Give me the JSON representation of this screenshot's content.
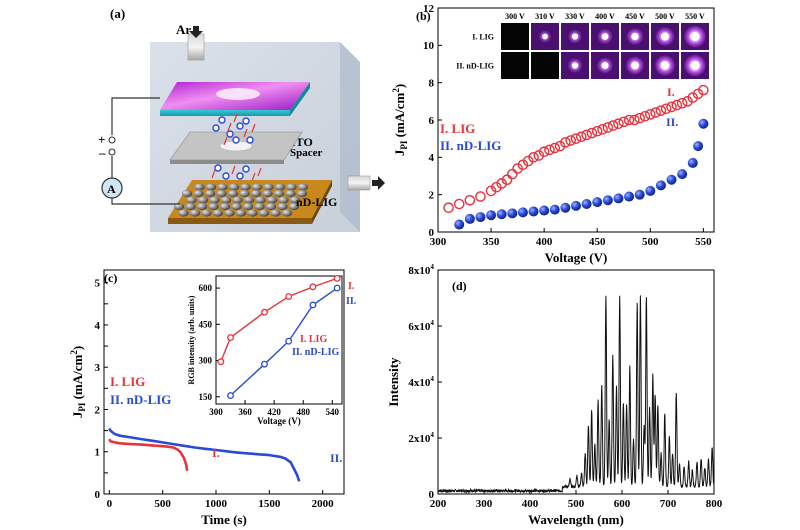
{
  "panels": {
    "a": {
      "label": "(a)",
      "gas_in": "Ar",
      "layer_top": "ITO",
      "layer_mid": "Spacer",
      "layer_bottom": "nD-LIG",
      "ammeter": "A",
      "plus": "+",
      "minus": "–"
    }
  },
  "chart_data": [
    {
      "id": "b",
      "panel_label": "(b)",
      "type": "scatter",
      "xlabel": "Voltage (V)",
      "ylabel": "J",
      "ylabel_sub": "PI",
      "ylabel_unit": " (mA/cm",
      "ylabel_sup": "2",
      "ylabel_close": ")",
      "xlim": [
        300,
        560
      ],
      "ylim": [
        0,
        12
      ],
      "xticks": [
        300,
        350,
        400,
        450,
        500,
        550
      ],
      "yticks": [
        0,
        2,
        4,
        6,
        8,
        10,
        12
      ],
      "legend": [
        "I. LIG",
        "II. nD-LIG"
      ],
      "series_end_labels": [
        "I.",
        "II."
      ],
      "series": [
        {
          "name": "I. LIG",
          "color": "#e8323c",
          "marker": "open-circle",
          "x": [
            310,
            320,
            330,
            340,
            350,
            355,
            360,
            365,
            370,
            375,
            380,
            385,
            390,
            395,
            400,
            405,
            410,
            415,
            420,
            425,
            430,
            435,
            440,
            445,
            450,
            455,
            460,
            465,
            470,
            475,
            480,
            485,
            490,
            495,
            500,
            505,
            510,
            515,
            520,
            525,
            530,
            535,
            540,
            545,
            550
          ],
          "y": [
            1.3,
            1.5,
            1.7,
            1.9,
            2.2,
            2.4,
            2.6,
            2.8,
            3.1,
            3.4,
            3.6,
            3.8,
            4.0,
            4.1,
            4.3,
            4.4,
            4.5,
            4.6,
            4.8,
            4.9,
            5.0,
            5.1,
            5.2,
            5.3,
            5.4,
            5.5,
            5.6,
            5.7,
            5.8,
            5.9,
            6.0,
            6.0,
            6.1,
            6.2,
            6.3,
            6.4,
            6.5,
            6.6,
            6.7,
            6.8,
            6.9,
            7.0,
            7.2,
            7.4,
            7.6
          ]
        },
        {
          "name": "II. nD-LIG",
          "color": "#2a4ad6",
          "marker": "filled-sphere",
          "x": [
            320,
            330,
            340,
            350,
            360,
            370,
            380,
            390,
            400,
            410,
            420,
            430,
            440,
            450,
            460,
            470,
            480,
            490,
            500,
            510,
            520,
            530,
            540,
            545,
            550
          ],
          "y": [
            0.4,
            0.7,
            0.8,
            0.9,
            0.95,
            1.0,
            1.05,
            1.1,
            1.15,
            1.2,
            1.3,
            1.4,
            1.5,
            1.6,
            1.7,
            1.8,
            1.9,
            2.0,
            2.2,
            2.5,
            2.8,
            3.1,
            3.7,
            4.6,
            5.8
          ]
        }
      ],
      "inset": {
        "row_labels": [
          "I. LIG",
          "II. nD-LIG"
        ],
        "columns": [
          "300 V",
          "310 V",
          "330 V",
          "400 V",
          "450 V",
          "500 V",
          "550 V"
        ],
        "lig_glow": [
          0,
          0.35,
          0.45,
          0.55,
          0.65,
          0.8,
          1.0
        ],
        "ndlig_glow": [
          0,
          0,
          0.5,
          0.6,
          0.75,
          0.9,
          1.0
        ]
      }
    },
    {
      "id": "c",
      "panel_label": "(c)",
      "type": "line",
      "xlabel": "Time (s)",
      "ylabel": "J",
      "ylabel_sub": "PI",
      "ylabel_unit": " (mA/cm",
      "ylabel_sup": "2",
      "ylabel_close": ")",
      "xlim": [
        -50,
        2200
      ],
      "ylim": [
        0,
        5.3
      ],
      "xticks": [
        0,
        500,
        1000,
        1500,
        2000
      ],
      "yticks": [
        0,
        0.5,
        1,
        1.5,
        2,
        2.5,
        3,
        3.5,
        4,
        4.5,
        5
      ],
      "ytick_labels": [
        "0",
        "",
        "1",
        "",
        "2",
        "",
        "3",
        "",
        "4",
        "",
        "5"
      ],
      "legend": [
        "I. LIG",
        "II. nD-LIG"
      ],
      "series_end_labels": [
        "I.",
        "II."
      ],
      "series": [
        {
          "name": "I. LIG",
          "color": "#e8323c",
          "x": [
            0,
            10,
            50,
            100,
            200,
            300,
            400,
            500,
            550,
            600,
            640,
            670,
            700,
            720,
            730
          ],
          "y": [
            1.3,
            1.25,
            1.22,
            1.2,
            1.18,
            1.17,
            1.15,
            1.13,
            1.12,
            1.1,
            1.05,
            0.98,
            0.85,
            0.7,
            0.55
          ]
        },
        {
          "name": "II. nD-LIG",
          "color": "#2a4ad6",
          "x": [
            0,
            10,
            50,
            100,
            200,
            300,
            400,
            500,
            600,
            700,
            800,
            900,
            1000,
            1100,
            1200,
            1300,
            1400,
            1500,
            1550,
            1600,
            1650,
            1700,
            1730,
            1760,
            1780
          ],
          "y": [
            1.55,
            1.5,
            1.42,
            1.38,
            1.34,
            1.3,
            1.26,
            1.22,
            1.18,
            1.14,
            1.1,
            1.07,
            1.04,
            1.01,
            0.98,
            0.96,
            0.94,
            0.92,
            0.9,
            0.88,
            0.84,
            0.75,
            0.6,
            0.45,
            0.3
          ]
        }
      ],
      "inset": {
        "type": "line",
        "xlabel": "Voltage (V)",
        "ylabel": "RGB intensity (arb. units)",
        "xlim": [
          300,
          560
        ],
        "ylim": [
          120,
          650
        ],
        "xticks": [
          300,
          360,
          420,
          480,
          540
        ],
        "yticks": [
          150,
          300,
          450,
          600
        ],
        "legend": [
          "I. LIG",
          "II. nD-LIG"
        ],
        "series_end_labels": [
          "I.",
          "II."
        ],
        "series": [
          {
            "name": "I. LIG",
            "color": "#e8323c",
            "x": [
              310,
              330,
              400,
              450,
              500,
              550
            ],
            "y": [
              295,
              395,
              500,
              565,
              605,
              640
            ]
          },
          {
            "name": "II. nD-LIG",
            "color": "#2a4ad6",
            "x": [
              330,
              400,
              450,
              500,
              550
            ],
            "y": [
              155,
              285,
              380,
              530,
              600
            ]
          }
        ]
      }
    },
    {
      "id": "d",
      "panel_label": "(d)",
      "type": "line",
      "xlabel": "Wavelength (nm)",
      "ylabel": "Intensity",
      "xlim": [
        200,
        800
      ],
      "ylim": [
        0,
        80000
      ],
      "xticks": [
        200,
        300,
        400,
        500,
        600,
        700,
        800
      ],
      "yticks": [
        0,
        20000,
        40000,
        60000,
        80000
      ],
      "ytick_labels": [
        "0",
        "2x10",
        "4x10",
        "6x10",
        "8x10"
      ],
      "ytick_sup": "4",
      "color": "#111111",
      "peaks": [
        {
          "x": 487,
          "h": 2500
        },
        {
          "x": 502,
          "h": 4000
        },
        {
          "x": 512,
          "h": 5000
        },
        {
          "x": 520,
          "h": 12000
        },
        {
          "x": 527,
          "h": 22000
        },
        {
          "x": 534,
          "h": 27000
        },
        {
          "x": 541,
          "h": 15000
        },
        {
          "x": 548,
          "h": 31000
        },
        {
          "x": 556,
          "h": 36000
        },
        {
          "x": 565,
          "h": 68000
        },
        {
          "x": 572,
          "h": 24000
        },
        {
          "x": 580,
          "h": 47000
        },
        {
          "x": 588,
          "h": 36000
        },
        {
          "x": 595,
          "h": 68000
        },
        {
          "x": 603,
          "h": 30000
        },
        {
          "x": 610,
          "h": 29000
        },
        {
          "x": 617,
          "h": 43000
        },
        {
          "x": 625,
          "h": 17000
        },
        {
          "x": 633,
          "h": 66000
        },
        {
          "x": 640,
          "h": 68000
        },
        {
          "x": 648,
          "h": 22000
        },
        {
          "x": 653,
          "h": 68000
        },
        {
          "x": 660,
          "h": 28000
        },
        {
          "x": 667,
          "h": 40000
        },
        {
          "x": 672,
          "h": 33000
        },
        {
          "x": 678,
          "h": 29000
        },
        {
          "x": 685,
          "h": 12000
        },
        {
          "x": 693,
          "h": 26000
        },
        {
          "x": 703,
          "h": 18000
        },
        {
          "x": 710,
          "h": 12000
        },
        {
          "x": 718,
          "h": 33000
        },
        {
          "x": 725,
          "h": 8000
        },
        {
          "x": 735,
          "h": 7000
        },
        {
          "x": 745,
          "h": 9000
        },
        {
          "x": 753,
          "h": 6000
        },
        {
          "x": 763,
          "h": 9000
        },
        {
          "x": 772,
          "h": 10000
        },
        {
          "x": 780,
          "h": 7000
        },
        {
          "x": 788,
          "h": 10000
        },
        {
          "x": 796,
          "h": 14000
        }
      ]
    }
  ]
}
